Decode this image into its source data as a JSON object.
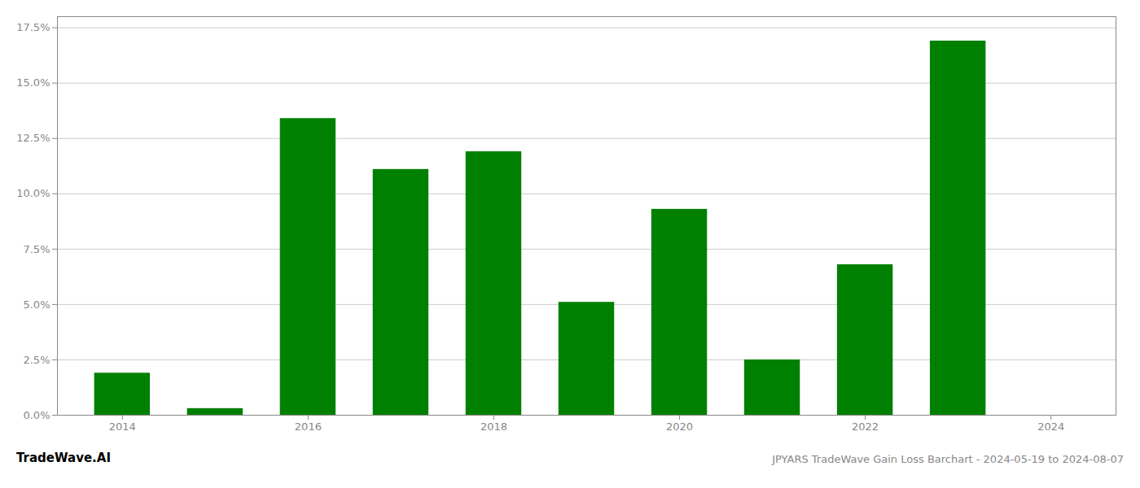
{
  "chart_data": {
    "type": "bar",
    "title": "JPYARS TradeWave Gain Loss Barchart - 2024-05-19 to 2024-08-07",
    "annotations": [
      "TradeWave.AI"
    ],
    "x": [
      2014,
      2015,
      2016,
      2017,
      2018,
      2019,
      2020,
      2021,
      2022,
      2023,
      2024
    ],
    "values": [
      0.019,
      0.003,
      0.134,
      0.111,
      0.119,
      0.051,
      0.093,
      0.025,
      0.068,
      0.169,
      0.0
    ],
    "color": "#008000",
    "xlim": [
      2013.3,
      2024.7
    ],
    "xticks": [
      2014,
      2016,
      2018,
      2020,
      2022,
      2024
    ],
    "ylim": [
      0,
      0.18
    ],
    "yticks": [
      {
        "value": 0.0,
        "label": "0.0%"
      },
      {
        "value": 0.025,
        "label": "2.5%"
      },
      {
        "value": 0.05,
        "label": "5.0%"
      },
      {
        "value": 0.075,
        "label": "7.5%"
      },
      {
        "value": 0.1,
        "label": "10.0%"
      },
      {
        "value": 0.125,
        "label": "12.5%"
      },
      {
        "value": 0.15,
        "label": "15.0%"
      },
      {
        "value": 0.175,
        "label": "17.5%"
      }
    ],
    "grid": "y"
  }
}
